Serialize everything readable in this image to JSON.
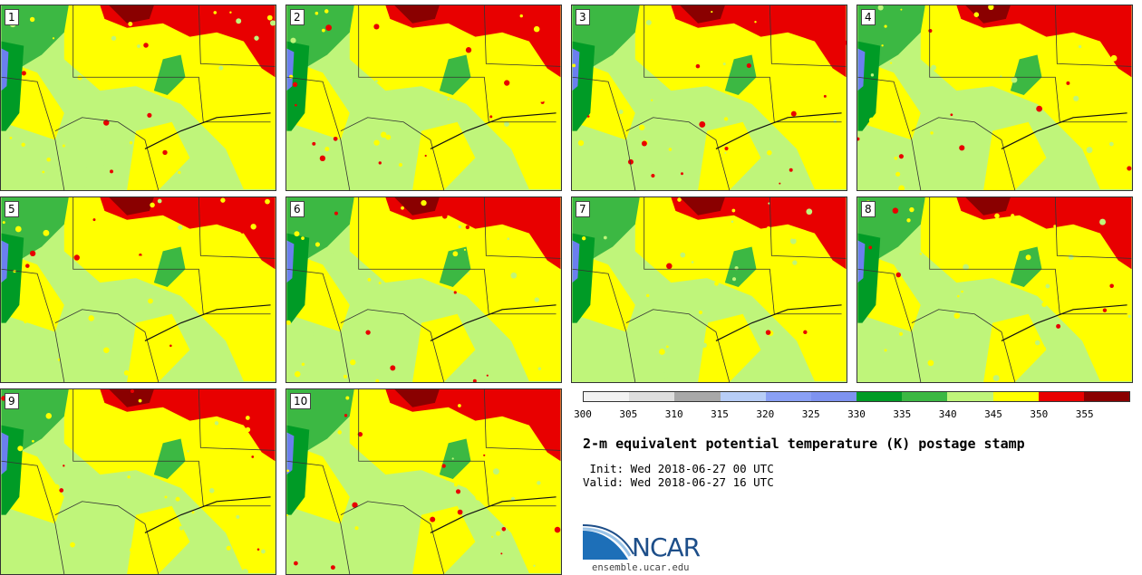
{
  "panels": [
    {
      "label": "1"
    },
    {
      "label": "2"
    },
    {
      "label": "3"
    },
    {
      "label": "4"
    },
    {
      "label": "5"
    },
    {
      "label": "6"
    },
    {
      "label": "7"
    },
    {
      "label": "8"
    },
    {
      "label": "9"
    },
    {
      "label": "10"
    }
  ],
  "colorbar": {
    "colors": [
      "#f2f2f2",
      "#dedede",
      "#a8a8a8",
      "#b7cdf7",
      "#8aa0f5",
      "#7e93f0",
      "#009b26",
      "#3cb843",
      "#bff57a",
      "#ffff00",
      "#e80000",
      "#8a0000"
    ],
    "ticks": [
      "300",
      "305",
      "310",
      "315",
      "320",
      "325",
      "330",
      "335",
      "340",
      "345",
      "350",
      "355"
    ]
  },
  "title": "2-m equivalent potential temperature (K) postage stamp",
  "init_line": " Init: Wed 2018-06-27 00 UTC",
  "valid_line": "Valid: Wed 2018-06-27 16 UTC",
  "logo": {
    "name": "NCAR",
    "url": "ensemble.ucar.edu"
  },
  "map_colors": {
    "base": "#bff57a",
    "warm": "#ffff00",
    "hot": "#e80000",
    "hottest": "#8a0000",
    "cool": "#3cb843",
    "cooler": "#009b26",
    "water": "#6b7fef",
    "border": "#333333"
  }
}
